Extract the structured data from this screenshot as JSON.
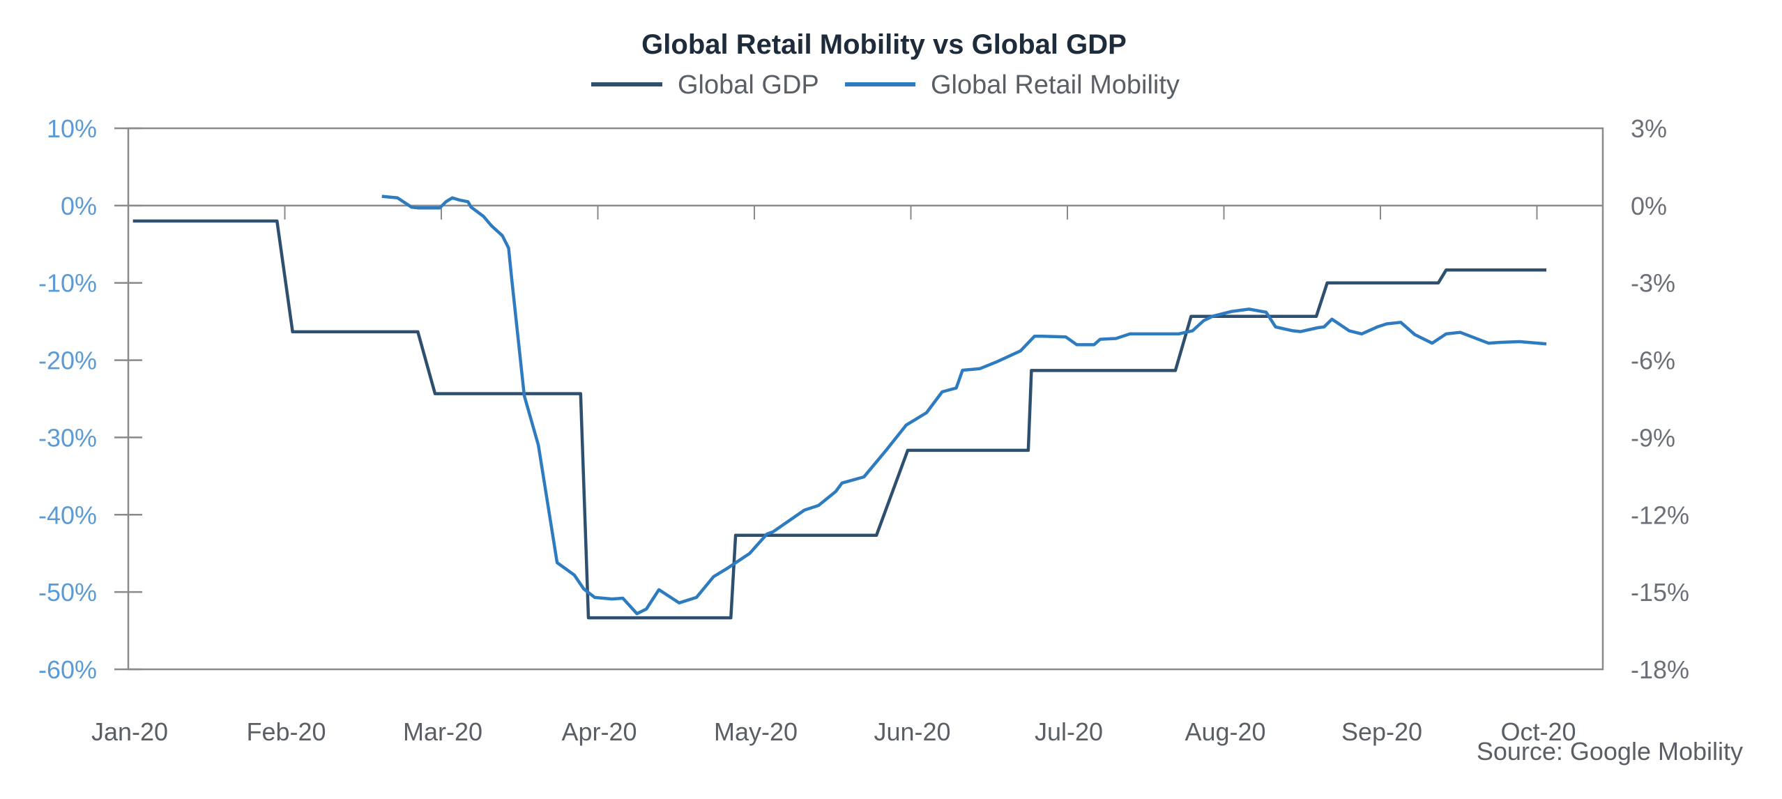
{
  "chart_data": {
    "type": "line",
    "title": "Global Retail Mobility vs Global GDP",
    "source": "Source: Google Mobility",
    "legend": {
      "placement": "top-center",
      "entries": [
        "Global GDP",
        "Global Retail Mobility"
      ]
    },
    "colors": {
      "gdp": "#2e4f6e",
      "mobility": "#2f7bbf",
      "axis": "#8a8a8a",
      "left_tick": "#5b9bd5",
      "right_tick": "#6b7078"
    },
    "x_ticks": [
      "Jan-20",
      "Feb-20",
      "Mar-20",
      "Apr-20",
      "May-20",
      "Jun-20",
      "Jul-20",
      "Aug-20",
      "Sep-20",
      "Oct-20"
    ],
    "x_unit": "months since Jan-20",
    "xlim": [
      0,
      9.7
    ],
    "y_left": {
      "label": "",
      "ticks": [
        "10%",
        "0%",
        "-10%",
        "-20%",
        "-30%",
        "-40%",
        "-50%",
        "-60%"
      ],
      "tick_values": [
        10,
        0,
        -10,
        -20,
        -30,
        -40,
        -50,
        -60
      ],
      "ylim": [
        -60,
        10
      ]
    },
    "y_right": {
      "label": "",
      "ticks": [
        "3%",
        "0%",
        "-3%",
        "-6%",
        "-9%",
        "-12%",
        "-15%",
        "-18%"
      ],
      "tick_values": [
        3,
        0,
        -3,
        -6,
        -9,
        -12,
        -15,
        -18
      ],
      "ylim": [
        -18,
        3
      ]
    },
    "grid": false,
    "zero_line": true,
    "series": [
      {
        "name": "Global GDP",
        "axis": "right",
        "x": [
          0.03,
          0.95,
          1.05,
          1.85,
          1.96,
          2.89,
          2.94,
          3.85,
          3.88,
          4.78,
          4.98,
          5.75,
          5.77,
          6.69,
          6.79,
          7.59,
          7.66,
          8.37,
          8.42,
          9.06
        ],
        "values": [
          -0.6,
          -0.6,
          -4.9,
          -4.9,
          -7.3,
          -7.3,
          -16.0,
          -16.0,
          -12.8,
          -12.8,
          -9.5,
          -9.5,
          -6.4,
          -6.4,
          -4.3,
          -4.3,
          -3.0,
          -3.0,
          -2.5,
          -2.5
        ]
      },
      {
        "name": "Global Retail Mobility",
        "axis": "left",
        "x": [
          1.62,
          1.72,
          1.81,
          1.85,
          1.94,
          1.99,
          2.03,
          2.07,
          2.12,
          2.17,
          2.19,
          2.23,
          2.27,
          2.32,
          2.39,
          2.43,
          2.45,
          2.53,
          2.62,
          2.74,
          2.85,
          2.91,
          2.98,
          3.09,
          3.16,
          3.25,
          3.31,
          3.39,
          3.52,
          3.63,
          3.74,
          3.83,
          3.97,
          4.08,
          4.12,
          4.32,
          4.41,
          4.52,
          4.56,
          4.7,
          4.84,
          4.97,
          5.1,
          5.2,
          5.29,
          5.33,
          5.44,
          5.55,
          5.7,
          5.79,
          5.84,
          5.99,
          6.06,
          6.17,
          6.21,
          6.31,
          6.4,
          6.51,
          6.71,
          6.8,
          6.87,
          6.93,
          7.05,
          7.16,
          7.27,
          7.33,
          7.44,
          7.49,
          7.6,
          7.64,
          7.69,
          7.8,
          7.88,
          7.98,
          8.04,
          8.13,
          8.22,
          8.33,
          8.42,
          8.51,
          8.69,
          8.76,
          8.89,
          9.06
        ],
        "values": [
          1.2,
          1.0,
          -0.2,
          -0.3,
          -0.3,
          -0.3,
          0.5,
          1.0,
          0.7,
          0.5,
          -0.2,
          -0.8,
          -1.4,
          -2.6,
          -3.9,
          -5.5,
          -9.5,
          -24.6,
          -31.0,
          -46.2,
          -47.8,
          -49.6,
          -50.7,
          -50.9,
          -50.8,
          -52.8,
          -52.2,
          -49.7,
          -51.4,
          -50.7,
          -48.0,
          -46.9,
          -45.0,
          -42.5,
          -42.2,
          -39.4,
          -38.8,
          -37.0,
          -35.9,
          -35.1,
          -31.7,
          -28.4,
          -26.8,
          -24.1,
          -23.6,
          -21.3,
          -21.1,
          -20.2,
          -18.8,
          -16.9,
          -16.9,
          -17.0,
          -18.0,
          -18.0,
          -17.3,
          -17.2,
          -16.6,
          -16.6,
          -16.6,
          -16.2,
          -14.9,
          -14.3,
          -13.7,
          -13.4,
          -13.8,
          -15.7,
          -16.2,
          -16.3,
          -15.8,
          -15.7,
          -14.7,
          -16.2,
          -16.6,
          -15.7,
          -15.3,
          -15.1,
          -16.7,
          -17.8,
          -16.6,
          -16.4,
          -17.8,
          -17.7,
          -17.6,
          -17.9
        ]
      }
    ]
  }
}
